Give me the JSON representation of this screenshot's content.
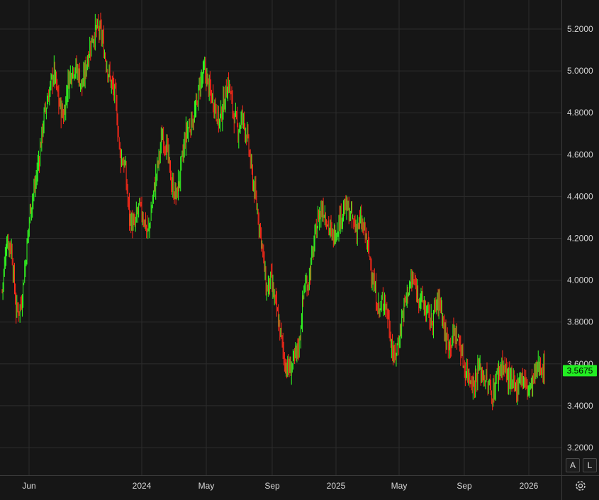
{
  "chart_data": {
    "type": "candlestick",
    "title": "",
    "xlabel": "",
    "ylabel": "",
    "ylim": [
      3.13,
      5.29
    ],
    "grid": true,
    "y_ticks": [
      "3.2000",
      "3.4000",
      "3.6000",
      "3.8000",
      "4.0000",
      "4.2000",
      "4.4000",
      "4.6000",
      "4.8000",
      "5.0000",
      "5.2000"
    ],
    "x_ticks": [
      "Jun",
      "2024",
      "May",
      "Sep",
      "2025",
      "May",
      "Sep",
      "2026"
    ],
    "last_price": 3.5675,
    "last_price_label": "3.5675",
    "colors": {
      "up": "#33ff22",
      "down": "#ff2a1a",
      "background": "#161616",
      "grid": "#2c2c2c",
      "text": "#d8d8d8",
      "price_tag": "#22ee22"
    },
    "series": [
      {
        "values": [
          3.95,
          4.2,
          4.15,
          3.85,
          3.88,
          4.1,
          4.35,
          4.45,
          4.62,
          4.8,
          4.9,
          5.0,
          4.85,
          4.78,
          4.95,
          5.02,
          5.0,
          4.92,
          5.05,
          5.15,
          5.2,
          5.18,
          5.05,
          4.95,
          4.88,
          4.6,
          4.55,
          4.3,
          4.25,
          4.35,
          4.3,
          4.22,
          4.4,
          4.55,
          4.7,
          4.62,
          4.45,
          4.4,
          4.55,
          4.7,
          4.75,
          4.8,
          4.95,
          5.0,
          4.9,
          4.85,
          4.75,
          4.85,
          4.95,
          4.8,
          4.72,
          4.78,
          4.68,
          4.5,
          4.35,
          4.2,
          3.95,
          4.0,
          3.88,
          3.75,
          3.6,
          3.57,
          3.62,
          3.7,
          3.96,
          4.0,
          4.15,
          4.3,
          4.35,
          4.28,
          4.2,
          4.25,
          4.32,
          4.35,
          4.3,
          4.25,
          4.28,
          4.22,
          4.1,
          3.95,
          3.85,
          3.92,
          3.8,
          3.62,
          3.7,
          3.85,
          3.95,
          4.0,
          3.95,
          3.9,
          3.85,
          3.8,
          3.88,
          3.9,
          3.72,
          3.7,
          3.75,
          3.7,
          3.58,
          3.55,
          3.5,
          3.58,
          3.55,
          3.5,
          3.45,
          3.55,
          3.6,
          3.55,
          3.5,
          3.48,
          3.55,
          3.5,
          3.48,
          3.55,
          3.6,
          3.5675
        ]
      }
    ]
  }
}
